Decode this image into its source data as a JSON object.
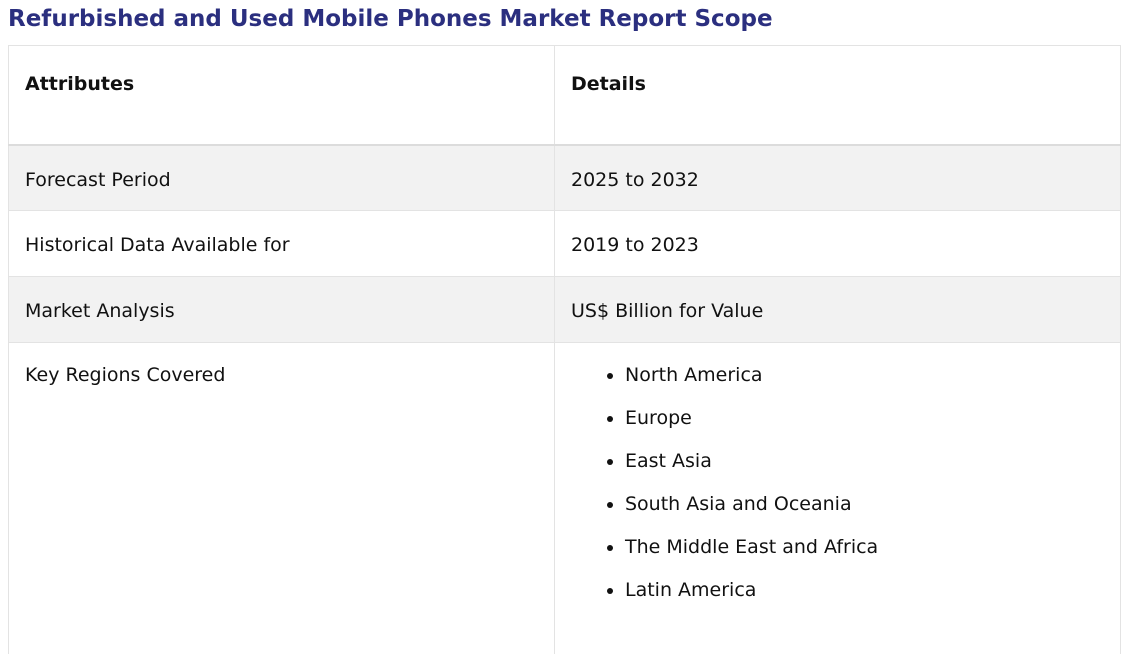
{
  "title": "Refurbished and Used Mobile Phones Market Report Scope",
  "table": {
    "headers": [
      "Attributes",
      "Details"
    ],
    "rows": [
      {
        "attribute": "Forecast Period",
        "detail": "2025 to 2032"
      },
      {
        "attribute": "Historical Data Available for",
        "detail": "2019 to 2023"
      },
      {
        "attribute": "Market Analysis",
        "detail": "US$ Billion for Value"
      },
      {
        "attribute": "Key Regions Covered",
        "details": [
          "North America",
          "Europe",
          "East Asia",
          "South Asia and Oceania",
          "The Middle East and Africa",
          "Latin America"
        ]
      }
    ]
  }
}
